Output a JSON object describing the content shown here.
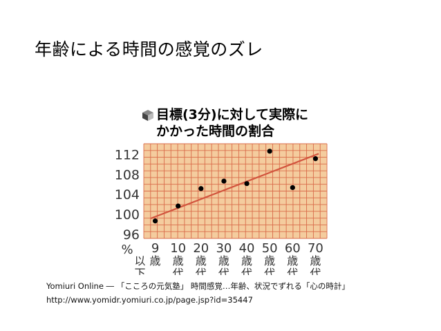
{
  "slide": {
    "title": "年齢による時間の感覚のズレ"
  },
  "figure": {
    "heading_line1": "目標(3分)に対して実際に",
    "heading_line2": "かかった時間の割合",
    "icon": "cube-icon"
  },
  "chart_data": {
    "type": "scatter",
    "ylabel": "%",
    "ylim": [
      95,
      114
    ],
    "yticks": [
      96,
      100,
      104,
      108,
      112
    ],
    "categories": [
      "9\n以下",
      "10\n歳\n代",
      "20\n歳\n代",
      "30\n歳\n代",
      "40\n歳\n代",
      "50\n歳\n代",
      "60\n歳\n代",
      "70\n歳\n代"
    ],
    "tick_labels": [
      [
        "9",
        "歳",
        "以",
        "下"
      ],
      [
        "10",
        "歳",
        "代"
      ],
      [
        "20",
        "歳",
        "代"
      ],
      [
        "30",
        "歳",
        "代"
      ],
      [
        "40",
        "歳",
        "代"
      ],
      [
        "50",
        "歳",
        "代"
      ],
      [
        "60",
        "歳",
        "代"
      ],
      [
        "70",
        "歳",
        "代"
      ]
    ],
    "values": [
      98.5,
      101.5,
      105.0,
      106.5,
      106.0,
      112.5,
      105.2,
      111.0
    ],
    "trendline": {
      "start": 99.0,
      "end": 112.0
    },
    "grid": true,
    "colors": {
      "background": "#f4cc9e",
      "grid": "#d96b4a",
      "trend": "#d2553e",
      "points": "#000000"
    }
  },
  "caption": {
    "line1": "Yomiuri Online ― 「こころの元気塾」 時間感覚…年齢、状況でずれる「心の時計」",
    "line2": "http://www.yomidr.yomiuri.co.jp/page.jsp?id=35447"
  }
}
